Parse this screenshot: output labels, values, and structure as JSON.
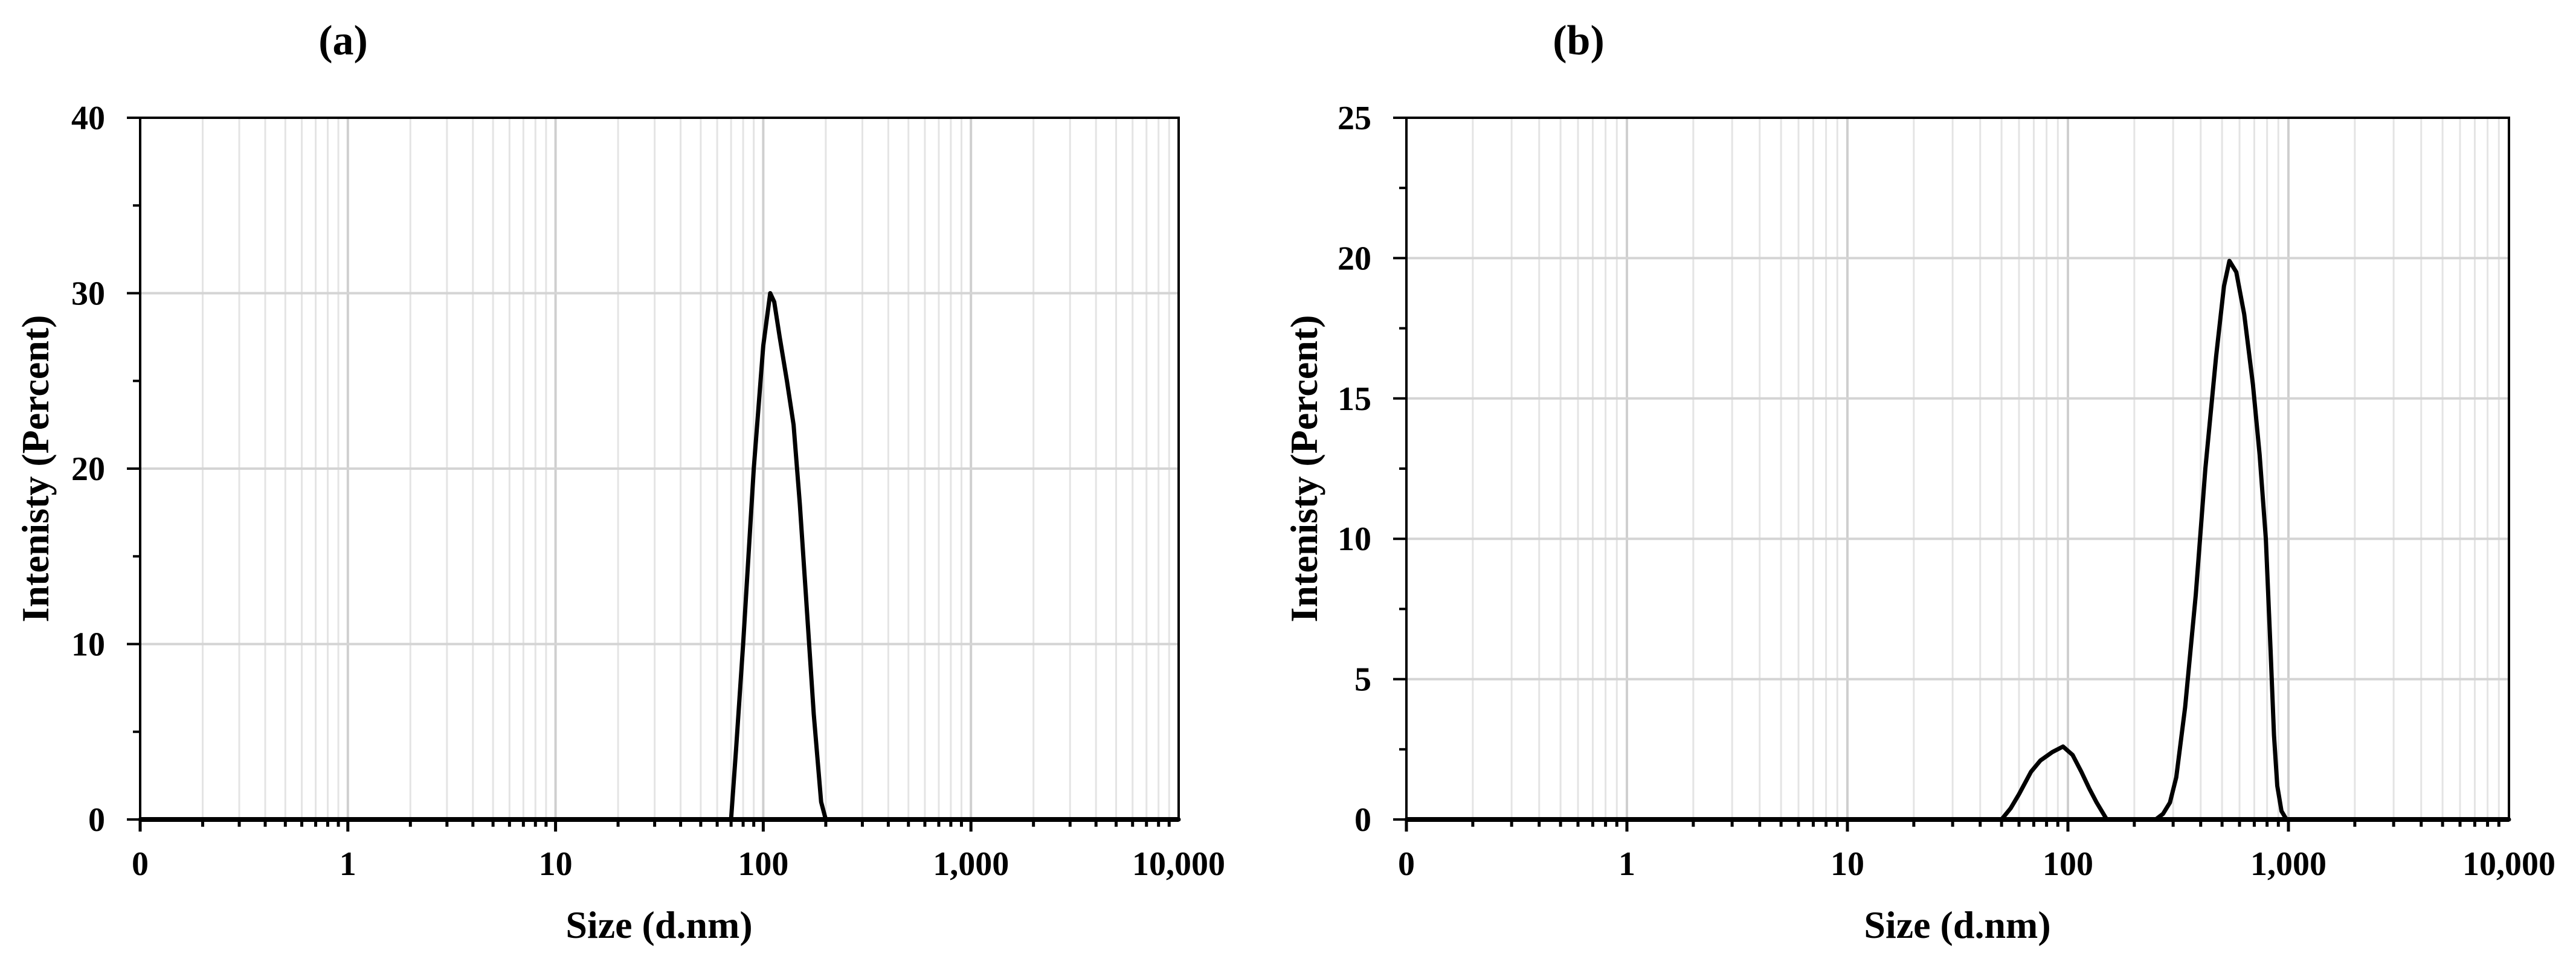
{
  "chart_data": [
    {
      "type": "line",
      "panel_label": "(a)",
      "xlabel": "Size (d.nm)",
      "ylabel": "Intenisty (Percent)",
      "xscale": "log",
      "xlim": [
        0.1,
        10000
      ],
      "xticks": [
        {
          "value": 0.1,
          "label": "0"
        },
        {
          "value": 1,
          "label": "1"
        },
        {
          "value": 10,
          "label": "10"
        },
        {
          "value": 100,
          "label": "100"
        },
        {
          "value": 1000,
          "label": "1,000"
        },
        {
          "value": 10000,
          "label": "10,000"
        }
      ],
      "ylim": [
        0,
        40
      ],
      "yticks": [
        {
          "value": 0,
          "label": "0"
        },
        {
          "value": 10,
          "label": "10"
        },
        {
          "value": 20,
          "label": "20"
        },
        {
          "value": 30,
          "label": "30"
        },
        {
          "value": 40,
          "label": "40"
        }
      ],
      "grid": true,
      "series": [
        {
          "name": "Intensity",
          "x": [
            0.1,
            70,
            74,
            80,
            90,
            100,
            108,
            113,
            120,
            130,
            140,
            150,
            160,
            175,
            190,
            200,
            10000
          ],
          "y": [
            0,
            0,
            4,
            10,
            20,
            27,
            30,
            29.5,
            27.5,
            25,
            22.5,
            18,
            13,
            6,
            1,
            0,
            0
          ]
        }
      ]
    },
    {
      "type": "line",
      "panel_label": "(b)",
      "xlabel": "Size (d.nm)",
      "ylabel": "Intenisty (Percent)",
      "xscale": "log",
      "xlim": [
        0.1,
        10000
      ],
      "xticks": [
        {
          "value": 0.1,
          "label": "0"
        },
        {
          "value": 1,
          "label": "1"
        },
        {
          "value": 10,
          "label": "10"
        },
        {
          "value": 100,
          "label": "100"
        },
        {
          "value": 1000,
          "label": "1,000"
        },
        {
          "value": 10000,
          "label": "10,000"
        }
      ],
      "ylim": [
        0,
        25
      ],
      "yticks": [
        {
          "value": 0,
          "label": "0"
        },
        {
          "value": 5,
          "label": "5"
        },
        {
          "value": 10,
          "label": "10"
        },
        {
          "value": 15,
          "label": "15"
        },
        {
          "value": 20,
          "label": "20"
        },
        {
          "value": 25,
          "label": "25"
        }
      ],
      "grid": true,
      "series": [
        {
          "name": "Intensity",
          "x": [
            0.1,
            50,
            55,
            60,
            68,
            75,
            85,
            95,
            105,
            115,
            125,
            135,
            150,
            250,
            270,
            290,
            310,
            340,
            380,
            420,
            470,
            510,
            540,
            580,
            630,
            690,
            740,
            790,
            830,
            860,
            890,
            930,
            980,
            10000
          ],
          "y": [
            0,
            0,
            0.4,
            0.9,
            1.7,
            2.1,
            2.4,
            2.6,
            2.3,
            1.7,
            1.1,
            0.6,
            0,
            0,
            0.2,
            0.6,
            1.5,
            4,
            8,
            12.5,
            16.5,
            19,
            19.9,
            19.5,
            18,
            15.5,
            13,
            10,
            6,
            3,
            1.2,
            0.3,
            0,
            0
          ]
        }
      ]
    }
  ]
}
